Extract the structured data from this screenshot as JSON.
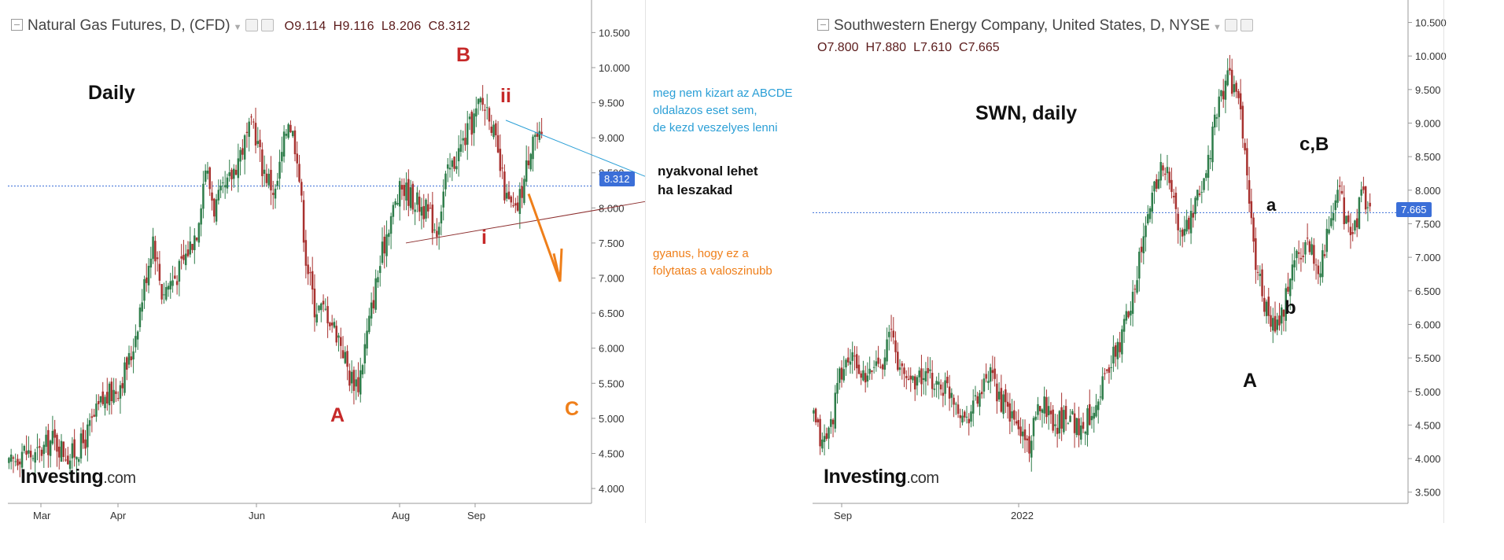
{
  "left_chart": {
    "title": "Natural Gas Futures, D, (CFD)",
    "ohlc": {
      "o": "O9.114",
      "h": "H9.116",
      "l": "L8.206",
      "c": "C8.312"
    },
    "last_price": "8.312",
    "logo": {
      "main": "Investing",
      "suffix": ".com"
    },
    "annotations": {
      "period": "Daily",
      "wave_a": "A",
      "wave_b": "B",
      "wave_c": "C",
      "wave_i": "i",
      "wave_ii": "ii",
      "note_blue": [
        "meg nem kizart az ABCDE",
        "oldalazos eset sem,",
        "de kezd veszelyes lenni"
      ],
      "note_black": [
        "nyakvonal lehet",
        "ha leszakad"
      ],
      "note_orange": [
        "gyanus, hogy ez a",
        "folytatas a valoszinubb"
      ]
    }
  },
  "right_chart": {
    "title": "Southwestern Energy Company, United States, D, NYSE",
    "ohlc": {
      "o": "O7.800",
      "h": "H7.880",
      "l": "L7.610",
      "c": "C7.665"
    },
    "last_price": "7.665",
    "logo": {
      "main": "Investing",
      "suffix": ".com"
    },
    "annotations": {
      "label": "SWN, daily",
      "wave_a_upper": "A",
      "wave_a_lower": "a",
      "wave_b_lower": "b",
      "wave_cb": "c,B"
    }
  },
  "colors": {
    "up": "#2e7d4a",
    "down": "#a8312f",
    "wave_red": "#c62828",
    "wave_orange": "#ef7f1a",
    "note_blue": "#2b9fd6",
    "trendline_dark": "#8c2d2d",
    "pricetag": "#3b6fd8"
  },
  "chart_data": [
    {
      "type": "candlestick",
      "title": "Natural Gas Futures, D, (CFD)",
      "ylim": [
        3.9,
        10.65
      ],
      "yticks": [
        "4.000",
        "4.500",
        "5.000",
        "5.500",
        "6.000",
        "6.500",
        "7.000",
        "7.500",
        "8.000",
        "8.500",
        "9.000",
        "9.500",
        "10.000",
        "10.500"
      ],
      "x_labels": [
        "Mar",
        "Apr",
        "Jun",
        "Aug",
        "Sep"
      ],
      "last": 8.312,
      "path": [
        [
          0,
          4.3
        ],
        [
          6,
          4.55
        ],
        [
          12,
          4.45
        ],
        [
          20,
          4.7
        ],
        [
          28,
          4.45
        ],
        [
          34,
          4.65
        ],
        [
          42,
          5.2
        ],
        [
          50,
          5.45
        ],
        [
          56,
          5.9
        ],
        [
          62,
          6.9
        ],
        [
          66,
          7.6
        ],
        [
          70,
          6.8
        ],
        [
          78,
          7.1
        ],
        [
          86,
          7.7
        ],
        [
          90,
          8.6
        ],
        [
          94,
          8.0
        ],
        [
          100,
          8.3
        ],
        [
          106,
          8.8
        ],
        [
          112,
          9.2
        ],
        [
          116,
          8.6
        ],
        [
          122,
          8.2
        ],
        [
          128,
          9.3
        ],
        [
          132,
          8.8
        ],
        [
          136,
          7.3
        ],
        [
          140,
          6.6
        ],
        [
          146,
          6.5
        ],
        [
          152,
          6.1
        ],
        [
          156,
          5.6
        ],
        [
          160,
          5.5
        ],
        [
          164,
          6.2
        ],
        [
          168,
          6.9
        ],
        [
          174,
          7.8
        ],
        [
          180,
          8.3
        ],
        [
          186,
          8.1
        ],
        [
          190,
          8.0
        ],
        [
          196,
          7.7
        ],
        [
          200,
          8.4
        ],
        [
          206,
          8.8
        ],
        [
          212,
          9.2
        ],
        [
          216,
          9.5
        ],
        [
          220,
          9.4
        ],
        [
          224,
          8.7
        ],
        [
          228,
          8.1
        ],
        [
          232,
          7.9
        ],
        [
          236,
          8.4
        ],
        [
          240,
          9.1
        ],
        [
          244,
          8.9
        ]
      ]
    },
    {
      "type": "candlestick",
      "title": "Southwestern Energy Company, United States, D, NYSE",
      "ylim": [
        3.45,
        10.6
      ],
      "yticks": [
        "3.500",
        "4.000",
        "4.500",
        "5.000",
        "5.500",
        "6.000",
        "6.500",
        "7.000",
        "7.500",
        "8.000",
        "8.500",
        "9.000",
        "9.500",
        "10.000",
        "10.500"
      ],
      "x_labels": [
        "Sep",
        "2022"
      ],
      "last": 7.665,
      "path": [
        [
          0,
          4.6
        ],
        [
          4,
          4.2
        ],
        [
          8,
          4.5
        ],
        [
          12,
          5.2
        ],
        [
          16,
          5.5
        ],
        [
          20,
          5.4
        ],
        [
          24,
          5.1
        ],
        [
          28,
          5.4
        ],
        [
          32,
          5.5
        ],
        [
          36,
          5.9
        ],
        [
          40,
          5.3
        ],
        [
          44,
          5.2
        ],
        [
          52,
          5.2
        ],
        [
          58,
          5.1
        ],
        [
          64,
          5.0
        ],
        [
          70,
          4.6
        ],
        [
          76,
          4.9
        ],
        [
          82,
          5.2
        ],
        [
          88,
          4.8
        ],
        [
          94,
          4.5
        ],
        [
          100,
          4.2
        ],
        [
          106,
          4.9
        ],
        [
          112,
          4.5
        ],
        [
          118,
          4.7
        ],
        [
          124,
          4.4
        ],
        [
          130,
          4.8
        ],
        [
          136,
          5.3
        ],
        [
          142,
          5.7
        ],
        [
          148,
          6.5
        ],
        [
          154,
          7.4
        ],
        [
          158,
          8.1
        ],
        [
          162,
          8.4
        ],
        [
          166,
          8.0
        ],
        [
          170,
          7.3
        ],
        [
          176,
          7.6
        ],
        [
          182,
          8.3
        ],
        [
          188,
          9.3
        ],
        [
          192,
          9.7
        ],
        [
          196,
          9.5
        ],
        [
          200,
          8.6
        ],
        [
          204,
          7.1
        ],
        [
          210,
          6.2
        ],
        [
          214,
          5.9
        ],
        [
          218,
          6.2
        ],
        [
          222,
          6.9
        ],
        [
          226,
          7.1
        ],
        [
          230,
          7.2
        ],
        [
          234,
          6.8
        ],
        [
          240,
          7.5
        ],
        [
          244,
          8.0
        ],
        [
          246,
          7.6
        ],
        [
          250,
          7.3
        ],
        [
          254,
          7.9
        ],
        [
          258,
          7.7
        ]
      ]
    }
  ]
}
